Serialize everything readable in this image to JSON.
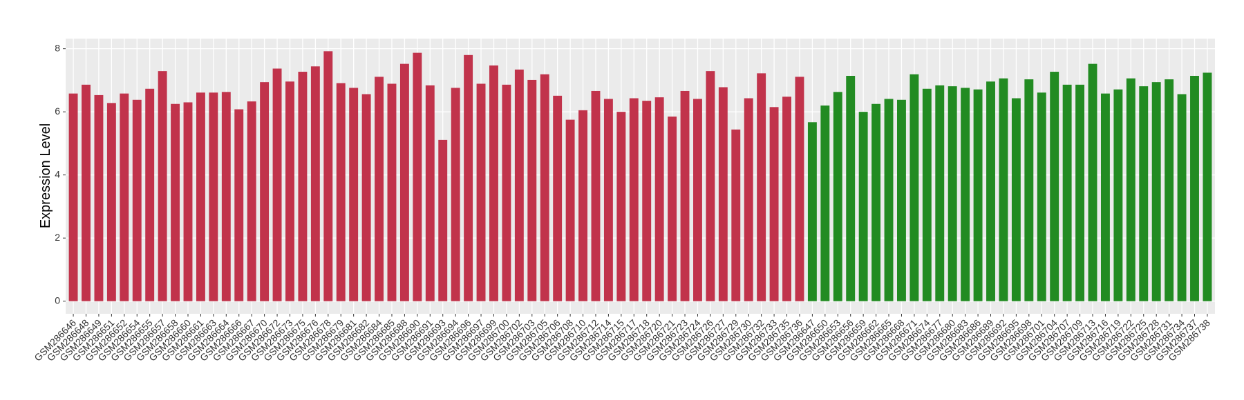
{
  "chart_data": {
    "type": "bar",
    "y_label": "Expression Level",
    "categories": [
      "GSM286646",
      "GSM286648",
      "GSM286649",
      "GSM286651",
      "GSM286652",
      "GSM286654",
      "GSM286655",
      "GSM286657",
      "GSM286658",
      "GSM286660",
      "GSM286661",
      "GSM286663",
      "GSM286664",
      "GSM286666",
      "GSM286667",
      "GSM286670",
      "GSM286672",
      "GSM286673",
      "GSM286675",
      "GSM286676",
      "GSM286678",
      "GSM286679",
      "GSM286681",
      "GSM286682",
      "GSM286684",
      "GSM286685",
      "GSM286688",
      "GSM286690",
      "GSM286691",
      "GSM286693",
      "GSM286694",
      "GSM286696",
      "GSM286697",
      "GSM286699",
      "GSM286700",
      "GSM286702",
      "GSM286703",
      "GSM286705",
      "GSM286706",
      "GSM286708",
      "GSM286710",
      "GSM286712",
      "GSM286714",
      "GSM286715",
      "GSM286717",
      "GSM286718",
      "GSM286720",
      "GSM286721",
      "GSM286723",
      "GSM286724",
      "GSM286726",
      "GSM286727",
      "GSM286729",
      "GSM286730",
      "GSM286732",
      "GSM286733",
      "GSM286735",
      "GSM286736",
      "GSM286647",
      "GSM286650",
      "GSM286653",
      "GSM286656",
      "GSM286659",
      "GSM286662",
      "GSM286665",
      "GSM286668",
      "GSM286671",
      "GSM286674",
      "GSM286677",
      "GSM286680",
      "GSM286683",
      "GSM286686",
      "GSM286689",
      "GSM286692",
      "GSM286695",
      "GSM286698",
      "GSM286701",
      "GSM286704",
      "GSM286707",
      "GSM286709",
      "GSM286713",
      "GSM286716",
      "GSM286719",
      "GSM286722",
      "GSM286725",
      "GSM286728",
      "GSM286731",
      "GSM286734",
      "GSM286737",
      "GSM286738"
    ],
    "values": [
      6.58,
      6.86,
      6.53,
      6.28,
      6.58,
      6.38,
      6.73,
      7.29,
      6.25,
      6.3,
      6.61,
      6.61,
      6.63,
      6.08,
      6.33,
      6.94,
      7.37,
      6.96,
      7.27,
      7.44,
      7.92,
      6.91,
      6.76,
      6.56,
      7.11,
      6.89,
      7.52,
      7.87,
      6.84,
      5.11,
      6.76,
      7.8,
      6.89,
      7.47,
      6.86,
      7.34,
      7.01,
      7.19,
      6.51,
      5.75,
      6.05,
      6.66,
      6.41,
      6.0,
      6.43,
      6.35,
      6.46,
      5.85,
      6.66,
      6.41,
      7.29,
      6.78,
      5.44,
      6.43,
      7.22,
      6.15,
      6.48,
      7.11,
      5.67,
      6.2,
      6.63,
      7.14,
      6.0,
      6.25,
      6.41,
      6.38,
      7.19,
      6.73,
      6.84,
      6.81,
      6.76,
      6.71,
      6.96,
      7.06,
      6.43,
      7.03,
      6.61,
      7.27,
      6.86,
      6.86,
      7.52,
      6.58,
      6.71,
      7.06,
      6.81,
      6.94,
      7.03,
      6.56,
      7.14,
      7.24
    ],
    "colors": [
      "#c1334b",
      "#c1334b",
      "#c1334b",
      "#c1334b",
      "#c1334b",
      "#c1334b",
      "#c1334b",
      "#c1334b",
      "#c1334b",
      "#c1334b",
      "#c1334b",
      "#c1334b",
      "#c1334b",
      "#c1334b",
      "#c1334b",
      "#c1334b",
      "#c1334b",
      "#c1334b",
      "#c1334b",
      "#c1334b",
      "#c1334b",
      "#c1334b",
      "#c1334b",
      "#c1334b",
      "#c1334b",
      "#c1334b",
      "#c1334b",
      "#c1334b",
      "#c1334b",
      "#c1334b",
      "#c1334b",
      "#c1334b",
      "#c1334b",
      "#c1334b",
      "#c1334b",
      "#c1334b",
      "#c1334b",
      "#c1334b",
      "#c1334b",
      "#c1334b",
      "#c1334b",
      "#c1334b",
      "#c1334b",
      "#c1334b",
      "#c1334b",
      "#c1334b",
      "#c1334b",
      "#c1334b",
      "#c1334b",
      "#c1334b",
      "#c1334b",
      "#c1334b",
      "#c1334b",
      "#c1334b",
      "#c1334b",
      "#c1334b",
      "#c1334b",
      "#c1334b",
      "#228b22",
      "#228b22",
      "#228b22",
      "#228b22",
      "#228b22",
      "#228b22",
      "#228b22",
      "#228b22",
      "#228b22",
      "#228b22",
      "#228b22",
      "#228b22",
      "#228b22",
      "#228b22",
      "#228b22",
      "#228b22",
      "#228b22",
      "#228b22",
      "#228b22",
      "#228b22",
      "#228b22",
      "#228b22",
      "#228b22",
      "#228b22",
      "#228b22",
      "#228b22",
      "#228b22",
      "#228b22",
      "#228b22",
      "#228b22",
      "#228b22",
      "#228b22"
    ],
    "ylim": [
      -0.4,
      8.32
    ],
    "yticks": [
      0,
      2,
      4,
      6,
      8
    ],
    "grid": true
  }
}
